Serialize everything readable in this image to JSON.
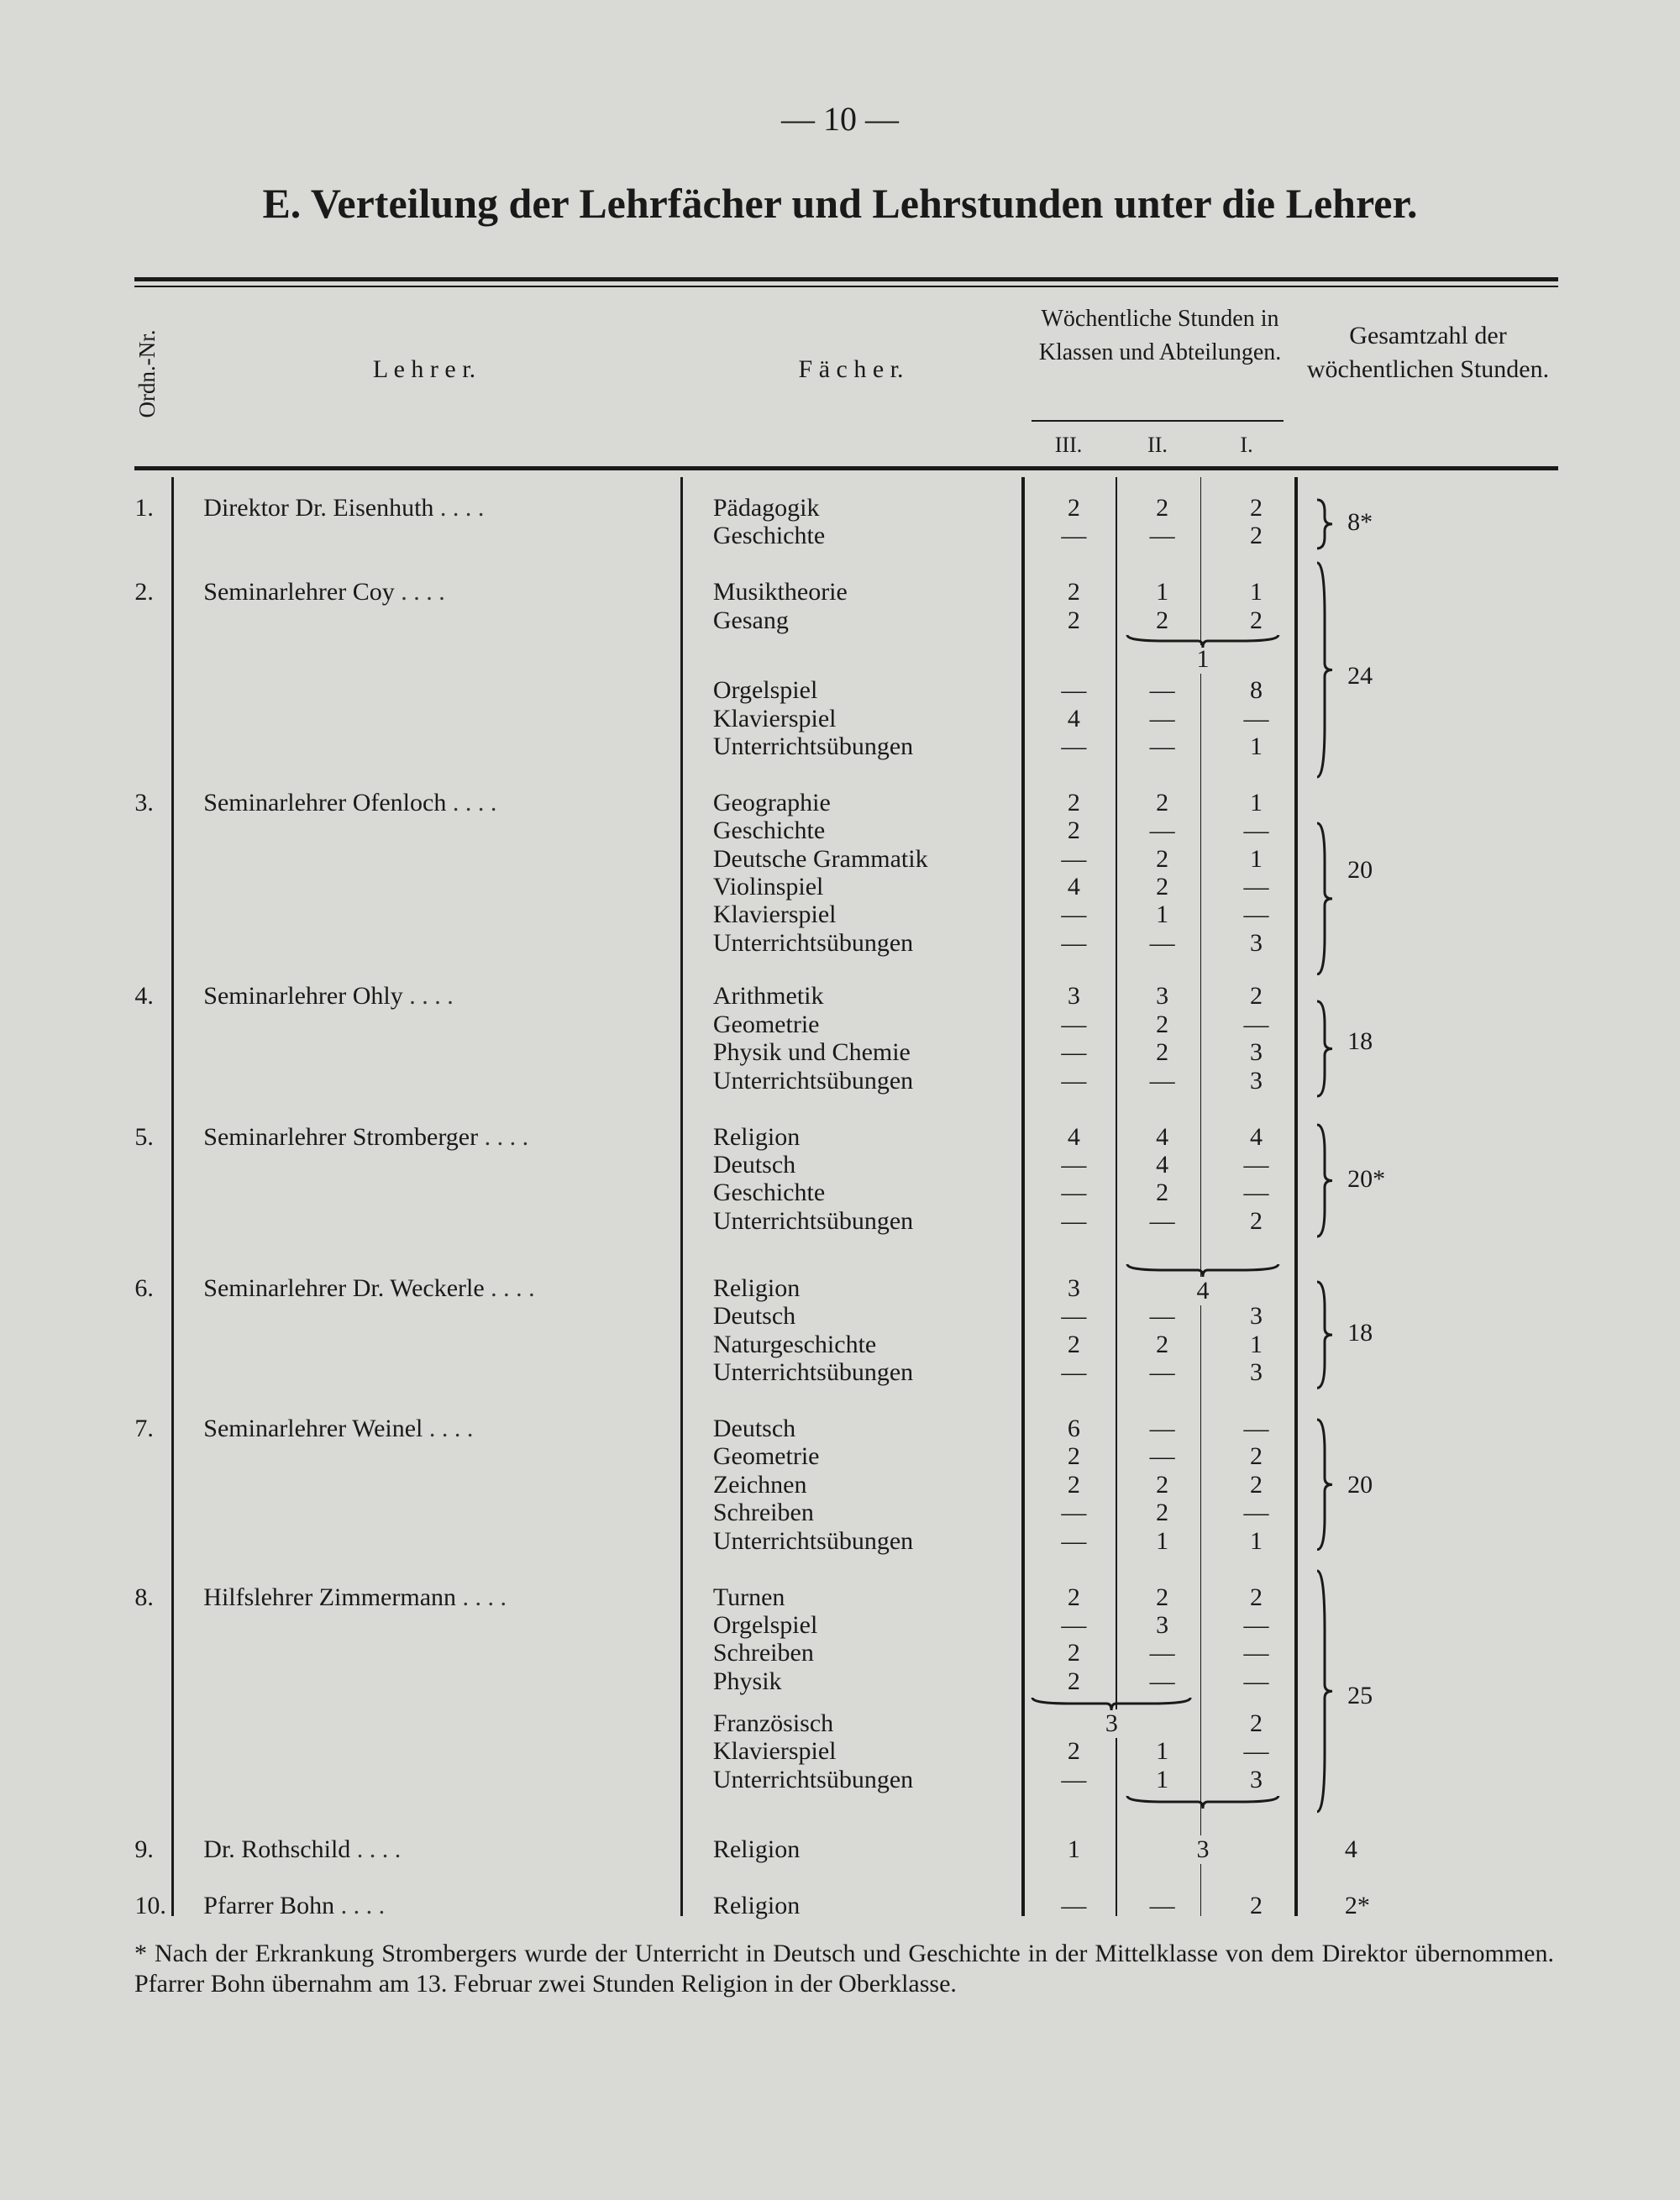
{
  "page_number": "— 10 —",
  "title": "E. Verteilung der Lehrfächer und Lehrstunden unter die Lehrer.",
  "table": {
    "headers": {
      "no": "Ordn.-Nr.",
      "teacher": "L e h r e r.",
      "subjects": "F ä c h e r.",
      "weekly": "Wöchentliche Stunden in Klassen und Abteilungen.",
      "classes": [
        "III.",
        "II.",
        "I."
      ],
      "total": "Gesamtzahl der wöchentlichen Stunden."
    },
    "leader": ". . . .",
    "rows": [
      {
        "no": "1.",
        "teacher": "Direktor Dr. Eisenhuth",
        "total": "8*",
        "subjects": [
          {
            "name": "Pädagogik",
            "iii": "2",
            "ii": "2",
            "i": "2"
          },
          {
            "name": "Geschichte",
            "iii": "—",
            "ii": "—",
            "i": "2"
          }
        ]
      },
      {
        "no": "2.",
        "teacher": "Seminarlehrer Coy",
        "total": "24",
        "merged": [
          {
            "cols": "II–I",
            "value": "1"
          }
        ],
        "subjects": [
          {
            "name": "Musiktheorie",
            "iii": "2",
            "ii": "1",
            "i": "1"
          },
          {
            "name": "Gesang",
            "iii": "2",
            "ii": "2",
            "i": "2"
          },
          {
            "name": "Orgelspiel",
            "iii": "—",
            "ii": "—",
            "i": "8"
          },
          {
            "name": "Klavierspiel",
            "iii": "4",
            "ii": "—",
            "i": "—"
          },
          {
            "name": "Unterrichtsübungen",
            "iii": "—",
            "ii": "—",
            "i": "1"
          }
        ]
      },
      {
        "no": "3.",
        "teacher": "Seminarlehrer Ofenloch",
        "total": "20",
        "subjects": [
          {
            "name": "Geographie",
            "iii": "2",
            "ii": "2",
            "i": "1"
          },
          {
            "name": "Geschichte",
            "iii": "2",
            "ii": "—",
            "i": "—"
          },
          {
            "name": "Deutsche Grammatik",
            "iii": "—",
            "ii": "2",
            "i": "1"
          },
          {
            "name": "Violinspiel",
            "iii": "4",
            "ii": "2",
            "i": "—"
          },
          {
            "name": "Klavierspiel",
            "iii": "—",
            "ii": "1",
            "i": "—"
          },
          {
            "name": "Unterrichtsübungen",
            "iii": "—",
            "ii": "—",
            "i": "3"
          }
        ]
      },
      {
        "no": "4.",
        "teacher": "Seminarlehrer Ohly",
        "total": "18",
        "subjects": [
          {
            "name": "Arithmetik",
            "iii": "3",
            "ii": "3",
            "i": "2"
          },
          {
            "name": "Geometrie",
            "iii": "—",
            "ii": "2",
            "i": "—"
          },
          {
            "name": "Physik und Chemie",
            "iii": "—",
            "ii": "2",
            "i": "3"
          },
          {
            "name": "Unterrichtsübungen",
            "iii": "—",
            "ii": "—",
            "i": "3"
          }
        ]
      },
      {
        "no": "5.",
        "teacher": "Seminarlehrer Stromberger",
        "total": "20*",
        "subjects": [
          {
            "name": "Religion",
            "iii": "4",
            "ii": "4",
            "i": "4"
          },
          {
            "name": "Deutsch",
            "iii": "—",
            "ii": "4",
            "i": "—"
          },
          {
            "name": "Geschichte",
            "iii": "—",
            "ii": "2",
            "i": "—"
          },
          {
            "name": "Unterrichtsübungen",
            "iii": "—",
            "ii": "—",
            "i": "2"
          }
        ]
      },
      {
        "no": "6.",
        "teacher": "Seminarlehrer Dr. Weckerle",
        "total": "18",
        "merged": [
          {
            "cols": "II–I",
            "value": "4"
          }
        ],
        "subjects": [
          {
            "name": "Religion",
            "iii": "3",
            "ii": "",
            "i": ""
          },
          {
            "name": "Deutsch",
            "iii": "—",
            "ii": "—",
            "i": "3"
          },
          {
            "name": "Naturgeschichte",
            "iii": "2",
            "ii": "2",
            "i": "1"
          },
          {
            "name": "Unterrichtsübungen",
            "iii": "—",
            "ii": "—",
            "i": "3"
          }
        ]
      },
      {
        "no": "7.",
        "teacher": "Seminarlehrer Weinel",
        "total": "20",
        "subjects": [
          {
            "name": "Deutsch",
            "iii": "6",
            "ii": "—",
            "i": "—"
          },
          {
            "name": "Geometrie",
            "iii": "2",
            "ii": "—",
            "i": "2"
          },
          {
            "name": "Zeichnen",
            "iii": "2",
            "ii": "2",
            "i": "2"
          },
          {
            "name": "Schreiben",
            "iii": "—",
            "ii": "2",
            "i": "—"
          },
          {
            "name": "Unterrichtsübungen",
            "iii": "—",
            "ii": "1",
            "i": "1"
          }
        ]
      },
      {
        "no": "8.",
        "teacher": "Hilfslehrer Zimmermann",
        "total": "25",
        "merged": [
          {
            "cols": "III–II",
            "value": "3"
          }
        ],
        "subjects": [
          {
            "name": "Turnen",
            "iii": "2",
            "ii": "2",
            "i": "2"
          },
          {
            "name": "Orgelspiel",
            "iii": "—",
            "ii": "3",
            "i": "—"
          },
          {
            "name": "Schreiben",
            "iii": "2",
            "ii": "—",
            "i": "—"
          },
          {
            "name": "Physik",
            "iii": "2",
            "ii": "—",
            "i": "—"
          },
          {
            "name": "Französisch",
            "iii": "",
            "ii": "",
            "i": "2"
          },
          {
            "name": "Klavierspiel",
            "iii": "2",
            "ii": "1",
            "i": "—"
          },
          {
            "name": "Unterrichtsübungen",
            "iii": "—",
            "ii": "1",
            "i": "3"
          }
        ]
      },
      {
        "no": "9.",
        "teacher": "Dr. Rothschild",
        "total": "4",
        "merged": [
          {
            "cols": "II–I",
            "value": "3"
          }
        ],
        "subjects": [
          {
            "name": "Religion",
            "iii": "1",
            "ii": "",
            "i": ""
          }
        ]
      },
      {
        "no": "10.",
        "teacher": "Pfarrer Bohn",
        "total": "2*",
        "subjects": [
          {
            "name": "Religion",
            "iii": "—",
            "ii": "—",
            "i": "2"
          }
        ]
      }
    ]
  },
  "footnote": "* Nach der Erkrankung Strombergers wurde der Unterricht in Deutsch und Geschichte in der Mittelklasse von dem Direktor übernommen. Pfarrer Bohn übernahm am 13. Februar zwei Stunden Religion in der Oberklasse."
}
